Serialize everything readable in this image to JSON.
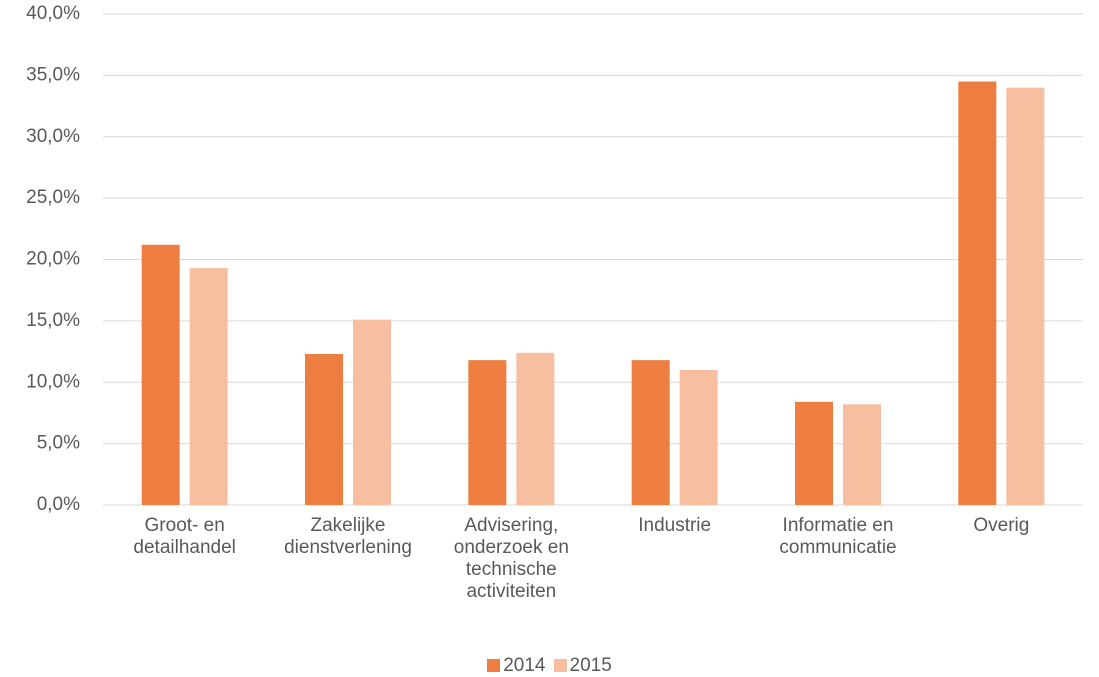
{
  "chart_data": {
    "type": "bar",
    "categories": [
      "Groot- en detailhandel",
      "Zakelijke dienstverlening",
      "Advisering, onderzoek en technische activiteiten",
      "Industrie",
      "Informatie en communicatie",
      "Overig"
    ],
    "series": [
      {
        "name": "2014",
        "color": "#ed7d41",
        "values": [
          21.2,
          12.3,
          11.8,
          11.8,
          8.4,
          34.5
        ]
      },
      {
        "name": "2015",
        "color": "#f7be9f",
        "values": [
          19.3,
          15.1,
          12.4,
          11.0,
          8.2,
          34.0
        ]
      }
    ],
    "ylim": [
      0,
      40
    ],
    "yticks": [
      {
        "value": 0,
        "label": "0,0%"
      },
      {
        "value": 5,
        "label": "5,0%"
      },
      {
        "value": 10,
        "label": "10,0%"
      },
      {
        "value": 15,
        "label": "15,0%"
      },
      {
        "value": 20,
        "label": "20,0%"
      },
      {
        "value": 25,
        "label": "25,0%"
      },
      {
        "value": 30,
        "label": "30,0%"
      },
      {
        "value": 35,
        "label": "35,0%"
      },
      {
        "value": 40,
        "label": "40,0%"
      }
    ],
    "grid": true,
    "legend": "bottom"
  }
}
